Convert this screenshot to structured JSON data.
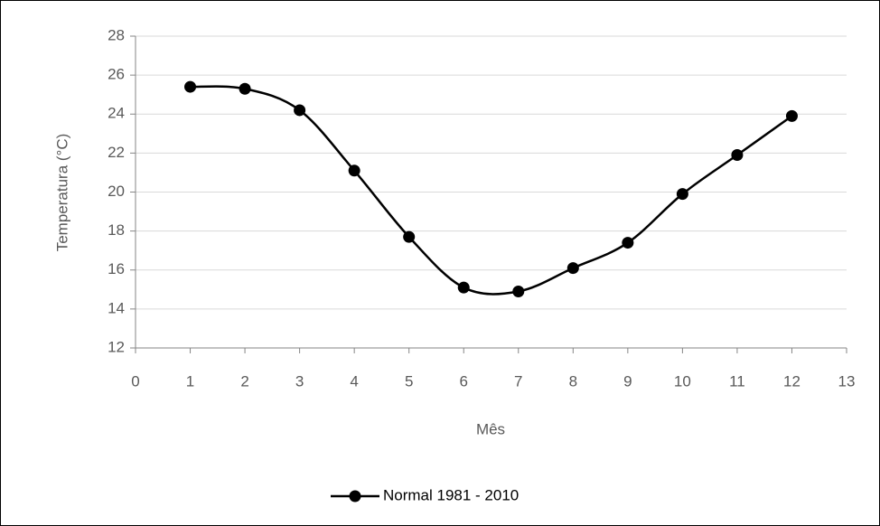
{
  "chart_data": {
    "type": "line",
    "smooth": true,
    "x": [
      1,
      2,
      3,
      4,
      5,
      6,
      7,
      8,
      9,
      10,
      11,
      12
    ],
    "series": [
      {
        "name": "Normal 1981 - 2010",
        "color": "#000000",
        "values": [
          25.4,
          25.3,
          24.2,
          21.1,
          17.7,
          15.1,
          14.9,
          16.1,
          17.4,
          19.9,
          21.9,
          23.9
        ]
      }
    ],
    "xlim": [
      0,
      13
    ],
    "xticks": [
      0,
      1,
      2,
      3,
      4,
      5,
      6,
      7,
      8,
      9,
      10,
      11,
      12,
      13
    ],
    "ylim": [
      12,
      28
    ],
    "yticks": [
      12,
      14,
      16,
      18,
      20,
      22,
      24,
      26,
      28
    ],
    "xlabel": "Mês",
    "ylabel": "Temperatura (°C)",
    "grid": true,
    "legend": "bottom"
  }
}
